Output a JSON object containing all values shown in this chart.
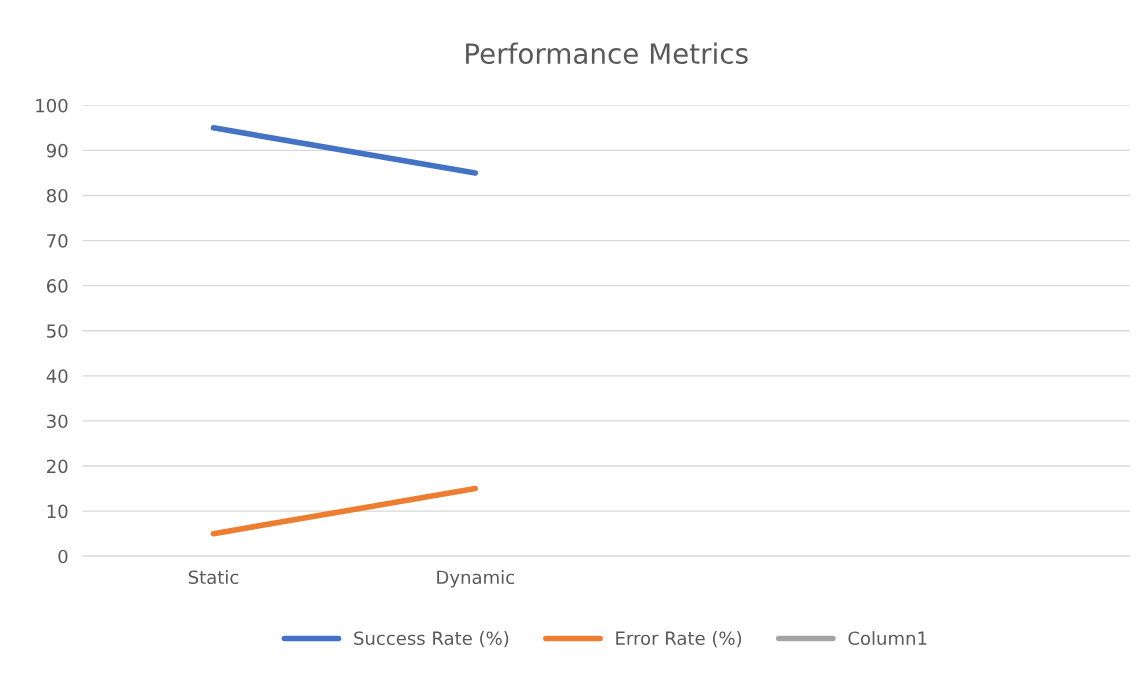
{
  "chart_data": {
    "type": "line",
    "title": "Performance Metrics",
    "categories": [
      "Static",
      "Dynamic",
      null,
      null
    ],
    "series": [
      {
        "name": "Success Rate (%)",
        "color": "#4472c4",
        "values": [
          95,
          85,
          null,
          null
        ]
      },
      {
        "name": "Error Rate (%)",
        "color": "#ed7d31",
        "values": [
          5,
          15,
          null,
          null
        ]
      },
      {
        "name": "Column1",
        "color": "#a5a5a5",
        "values": [
          null,
          null,
          null,
          null
        ]
      }
    ],
    "ylim": [
      0,
      100
    ],
    "yticks": [
      0,
      10,
      20,
      30,
      40,
      50,
      60,
      70,
      80,
      90,
      100
    ],
    "grid": "y",
    "legend": "bottom",
    "marker": "none",
    "line_style": "solid"
  }
}
